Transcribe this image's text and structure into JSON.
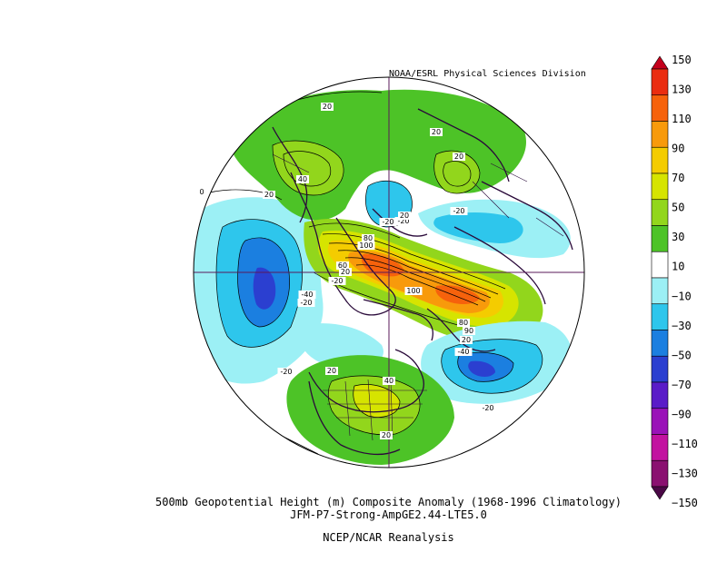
{
  "credit": "NOAA/ESRL Physical Sciences Division",
  "title": "500mb Geopotential Height (m) Composite Anomaly (1968-1996 Climatology)",
  "subtitle": "JFM-P7-Strong-AmpGE2.44-LTE5.0",
  "source": "NCEP/NCAR Reanalysis",
  "colorbar": {
    "labels": [
      "150",
      "130",
      "110",
      "90",
      "70",
      "50",
      "30",
      "10",
      "-10",
      "-30",
      "-50",
      "-70",
      "-90",
      "-110",
      "-130",
      "-150"
    ],
    "colors": [
      "#c4001c",
      "#ea2d10",
      "#f6620c",
      "#f89a0b",
      "#f4cc00",
      "#d6e400",
      "#92d61c",
      "#4dc327",
      "#ffffff",
      "#9cf0f5",
      "#2ec6ec",
      "#1b7fe0",
      "#2b3fd0",
      "#5a1cc8",
      "#9a12b8",
      "#c212a0",
      "#8a1070",
      "#4a0846"
    ]
  },
  "contour_labels": [
    "20",
    "20",
    "20",
    "40",
    "20",
    "0",
    "-20",
    "-20",
    "-20",
    "80",
    "100",
    "60",
    "20",
    "-20",
    "-40",
    "-20",
    "100",
    "80",
    "90",
    "20",
    "-40",
    "-20",
    "20",
    "40",
    "20",
    "20",
    "-20"
  ]
}
